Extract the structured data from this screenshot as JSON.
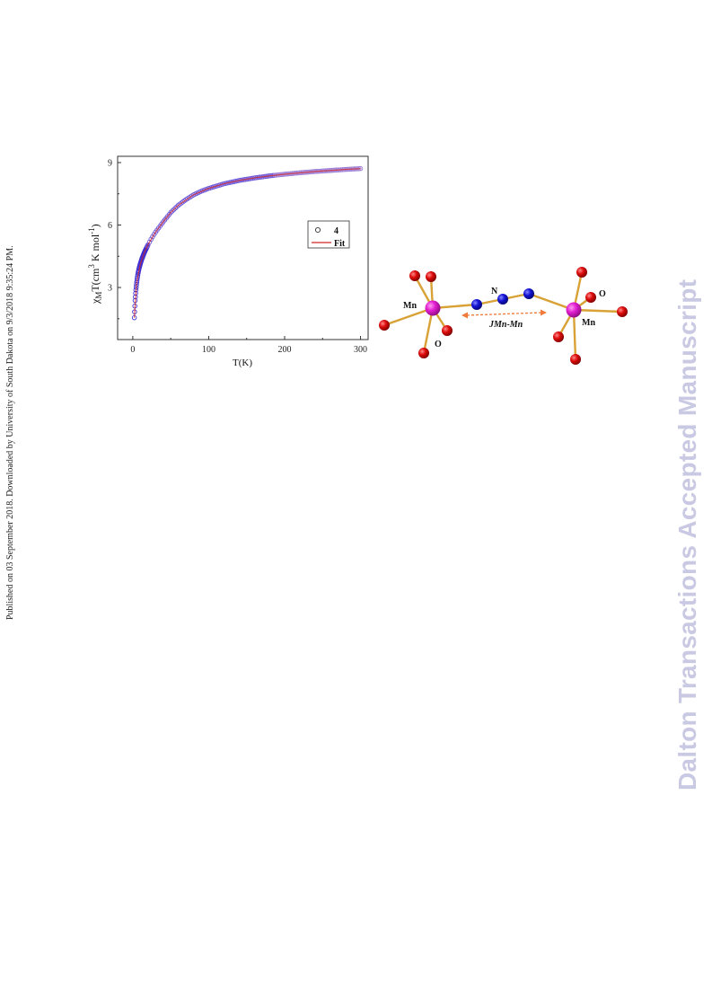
{
  "side_note": "Published on 03 September 2018. Downloaded by University of South Dakota on 9/3/2018 9:35:24 PM.",
  "watermark": "Dalton Transactions Accepted Manuscript",
  "chart_data": {
    "type": "scatter",
    "title": "",
    "xlabel": "T(K)",
    "ylabel_parts": [
      "χ",
      "M",
      "T(cm",
      "3",
      " K mol",
      "-1",
      ")"
    ],
    "xlim": [
      -20,
      310
    ],
    "ylim": [
      0.5,
      9.3
    ],
    "xticks": [
      0,
      100,
      200,
      300
    ],
    "yticks": [
      3,
      6,
      9
    ],
    "grid": false,
    "legend_placement": "center-right",
    "series": [
      {
        "name": "4",
        "marker": "open-circle",
        "color": "#3d2fd0",
        "x": [
          2,
          3,
          4,
          5,
          6,
          7,
          8,
          10,
          12,
          15,
          20,
          25,
          30,
          40,
          50,
          60,
          70,
          80,
          90,
          100,
          120,
          140,
          160,
          180,
          200,
          220,
          240,
          260,
          280,
          300
        ],
        "y": [
          1.55,
          2.35,
          2.85,
          3.2,
          3.48,
          3.7,
          3.88,
          4.15,
          4.38,
          4.66,
          5.05,
          5.38,
          5.66,
          6.15,
          6.6,
          6.95,
          7.22,
          7.45,
          7.62,
          7.76,
          7.98,
          8.14,
          8.26,
          8.36,
          8.44,
          8.51,
          8.57,
          8.62,
          8.67,
          8.71
        ]
      },
      {
        "name": "Fit",
        "marker": "line",
        "color": "#d42424",
        "x": [
          2,
          5,
          10,
          15,
          20,
          30,
          40,
          50,
          60,
          80,
          100,
          120,
          140,
          160,
          180,
          200,
          240,
          280,
          300
        ],
        "y": [
          1.55,
          3.2,
          4.15,
          4.66,
          5.05,
          5.66,
          6.15,
          6.6,
          6.95,
          7.45,
          7.76,
          7.98,
          8.14,
          8.26,
          8.36,
          8.44,
          8.57,
          8.67,
          8.71
        ]
      }
    ]
  },
  "structure": {
    "labels": {
      "mn_left": "Mn",
      "mn_right": "Mn",
      "n": "N",
      "o_left": "O",
      "o_right": "O",
      "coupling": "JMn-Mn"
    },
    "colors": {
      "mn": "#e11ed0",
      "n": "#1414d6",
      "o": "#dd0b0b",
      "bond": "#d8a236",
      "coupling_arrow": "#f07a3a"
    }
  }
}
